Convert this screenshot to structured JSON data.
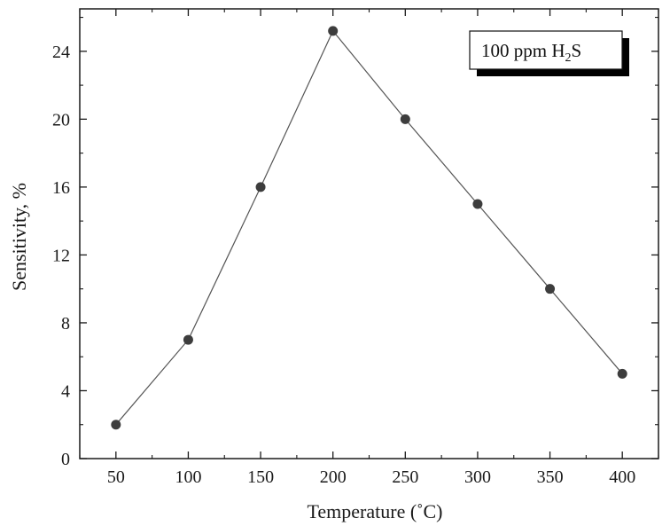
{
  "chart_data": {
    "type": "line",
    "x": [
      50,
      100,
      150,
      200,
      250,
      300,
      350,
      400
    ],
    "series": [
      {
        "values": [
          2,
          7,
          16,
          25.2,
          20,
          15,
          10,
          5
        ]
      }
    ],
    "xlabel": "Temperature (˚C)",
    "ylabel": "Sensitivity, %",
    "xticks": [
      50,
      100,
      150,
      200,
      250,
      300,
      350,
      400
    ],
    "yticks": [
      0,
      4,
      8,
      12,
      16,
      20,
      24
    ],
    "xlim": [
      25,
      425
    ],
    "ylim": [
      0,
      26.5
    ],
    "grid": false,
    "legend_position": "top-right",
    "annotation": {
      "main": "100 ppm H",
      "subscript": "2",
      "tail": "S"
    },
    "colors": {
      "marker": "#3d3d3d",
      "line": "#555555",
      "axis": "#1a1a1a"
    }
  }
}
